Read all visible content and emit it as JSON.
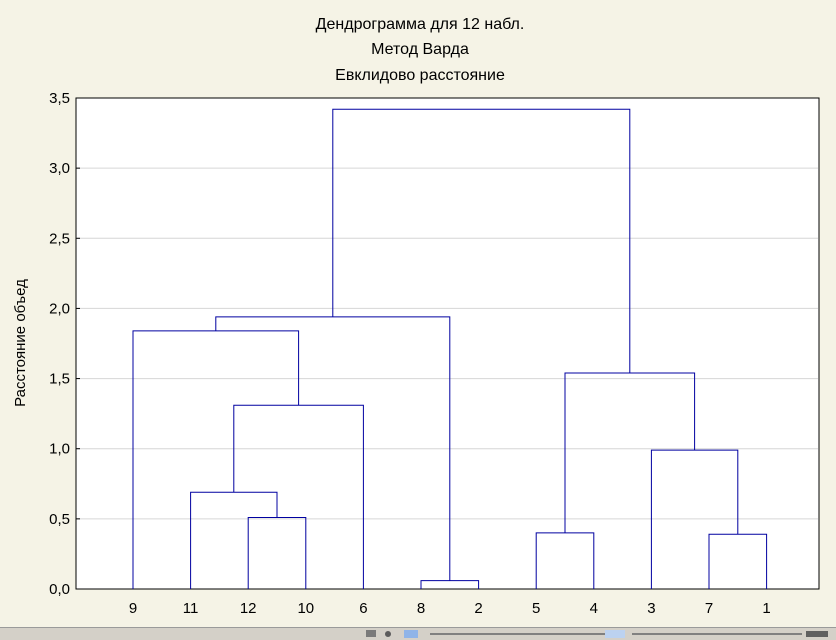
{
  "chart_data": {
    "type": "dendrogram",
    "title_lines": [
      "Дендрограмма для 12 набл.",
      "Метод Варда",
      "Евклидово расстояние"
    ],
    "ylabel": "Расстояние объед",
    "ylim": [
      0,
      3.5
    ],
    "yticks": [
      "0,0",
      "0,5",
      "1,0",
      "1,5",
      "2,0",
      "2,5",
      "3,0",
      "3,5"
    ],
    "ytick_values": [
      0,
      0.5,
      1.0,
      1.5,
      2.0,
      2.5,
      3.0,
      3.5
    ],
    "leaf_order": [
      "9",
      "11",
      "12",
      "10",
      "6",
      "8",
      "2",
      "5",
      "4",
      "3",
      "7",
      "1"
    ],
    "merges": [
      {
        "left": "12",
        "right": "10",
        "height": 0.51
      },
      {
        "left": "8",
        "right": "2",
        "height": 0.06
      },
      {
        "left": "5",
        "right": "4",
        "height": 0.4
      },
      {
        "left": "7",
        "right": "1",
        "height": 0.39
      },
      {
        "left": "11",
        "right": "[12,10]",
        "height": 0.69
      },
      {
        "left": "[11,12,10]",
        "right": "6",
        "height": 1.31
      },
      {
        "left": "3",
        "right": "[7,1]",
        "height": 0.99
      },
      {
        "left": "[5,4]",
        "right": "[3,7,1]",
        "height": 1.54
      },
      {
        "left": "9",
        "right": "[11,12,10,6]",
        "height": 1.84
      },
      {
        "left": "[9,11,12,10,6]",
        "right": "[8,2]",
        "height": 1.94
      },
      {
        "left": "[9,11,12,10,6,8,2]",
        "right": "[5,4,3,7,1]",
        "height": 3.42
      }
    ],
    "grid": true,
    "link_color": "#0000a0",
    "background_color": "#f5f3e6"
  }
}
